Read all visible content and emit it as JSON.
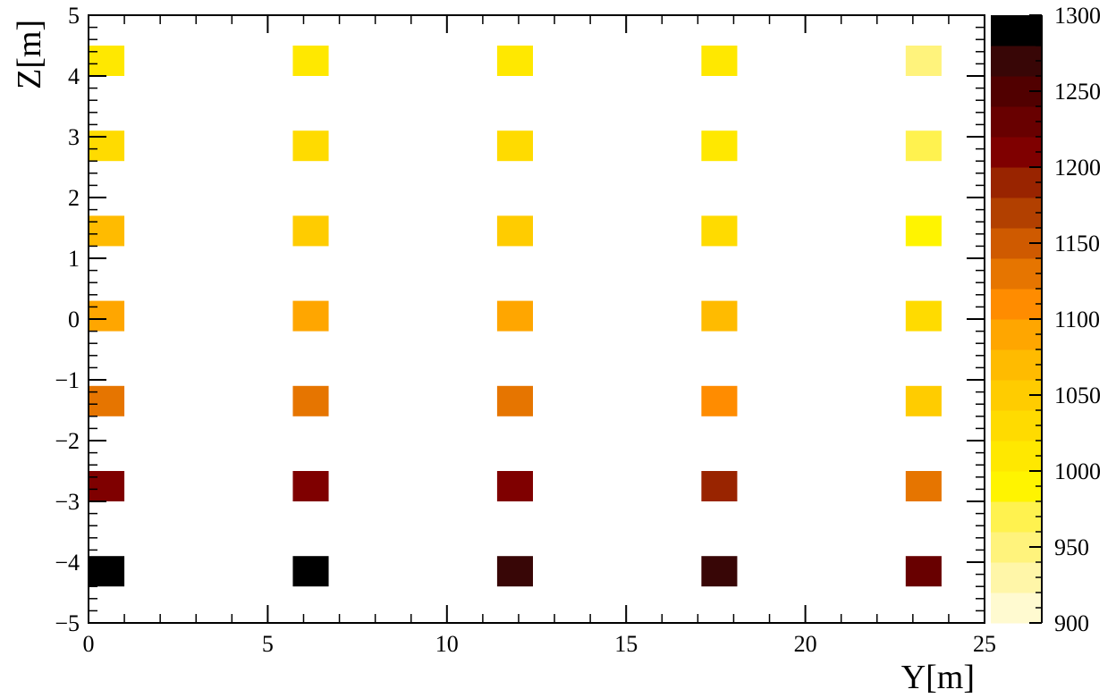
{
  "chart_data": {
    "type": "heatmap",
    "xlabel": "Y[m]",
    "ylabel": "Z[m]",
    "xlim": [
      0,
      25
    ],
    "ylim": [
      -5,
      5
    ],
    "x_ticks": [
      "0",
      "5",
      "10",
      "15",
      "20",
      "25"
    ],
    "y_ticks": [
      "−5",
      "−4",
      "−3",
      "−2",
      "−1",
      "0",
      "1",
      "2",
      "3",
      "4",
      "5"
    ],
    "colorbar": {
      "range": [
        900,
        1300
      ],
      "ticks": [
        "900",
        "950",
        "1000",
        "1050",
        "1100",
        "1150",
        "1200",
        "1250",
        "1300"
      ],
      "levels": 20,
      "colors": [
        "#fffad0",
        "#fff6a8",
        "#fff37c",
        "#fff24f",
        "#fff400",
        "#ffe800",
        "#ffdb00",
        "#ffcc00",
        "#ffbb00",
        "#ffa600",
        "#ff8c00",
        "#e67500",
        "#cf5a00",
        "#b24000",
        "#992400",
        "#7f0000",
        "#680000",
        "#510000",
        "#380606",
        "#000000"
      ]
    },
    "cell_size": [
      1.0,
      0.5
    ],
    "grid": false,
    "x": [
      0.5,
      6.2,
      11.9,
      17.6,
      23.3
    ],
    "y": [
      4.25,
      2.85,
      1.45,
      0.05,
      -1.35,
      -2.75,
      -4.15
    ],
    "values": [
      [
        1015,
        1015,
        1005,
        1003,
        955
      ],
      [
        1020,
        1025,
        1030,
        1010,
        965
      ],
      [
        1065,
        1050,
        1045,
        1025,
        995
      ],
      [
        1095,
        1090,
        1090,
        1070,
        1030
      ],
      [
        1135,
        1130,
        1135,
        1115,
        1055
      ],
      [
        1205,
        1200,
        1200,
        1180,
        1125
      ],
      [
        1300,
        1300,
        1275,
        1275,
        1220
      ]
    ]
  }
}
